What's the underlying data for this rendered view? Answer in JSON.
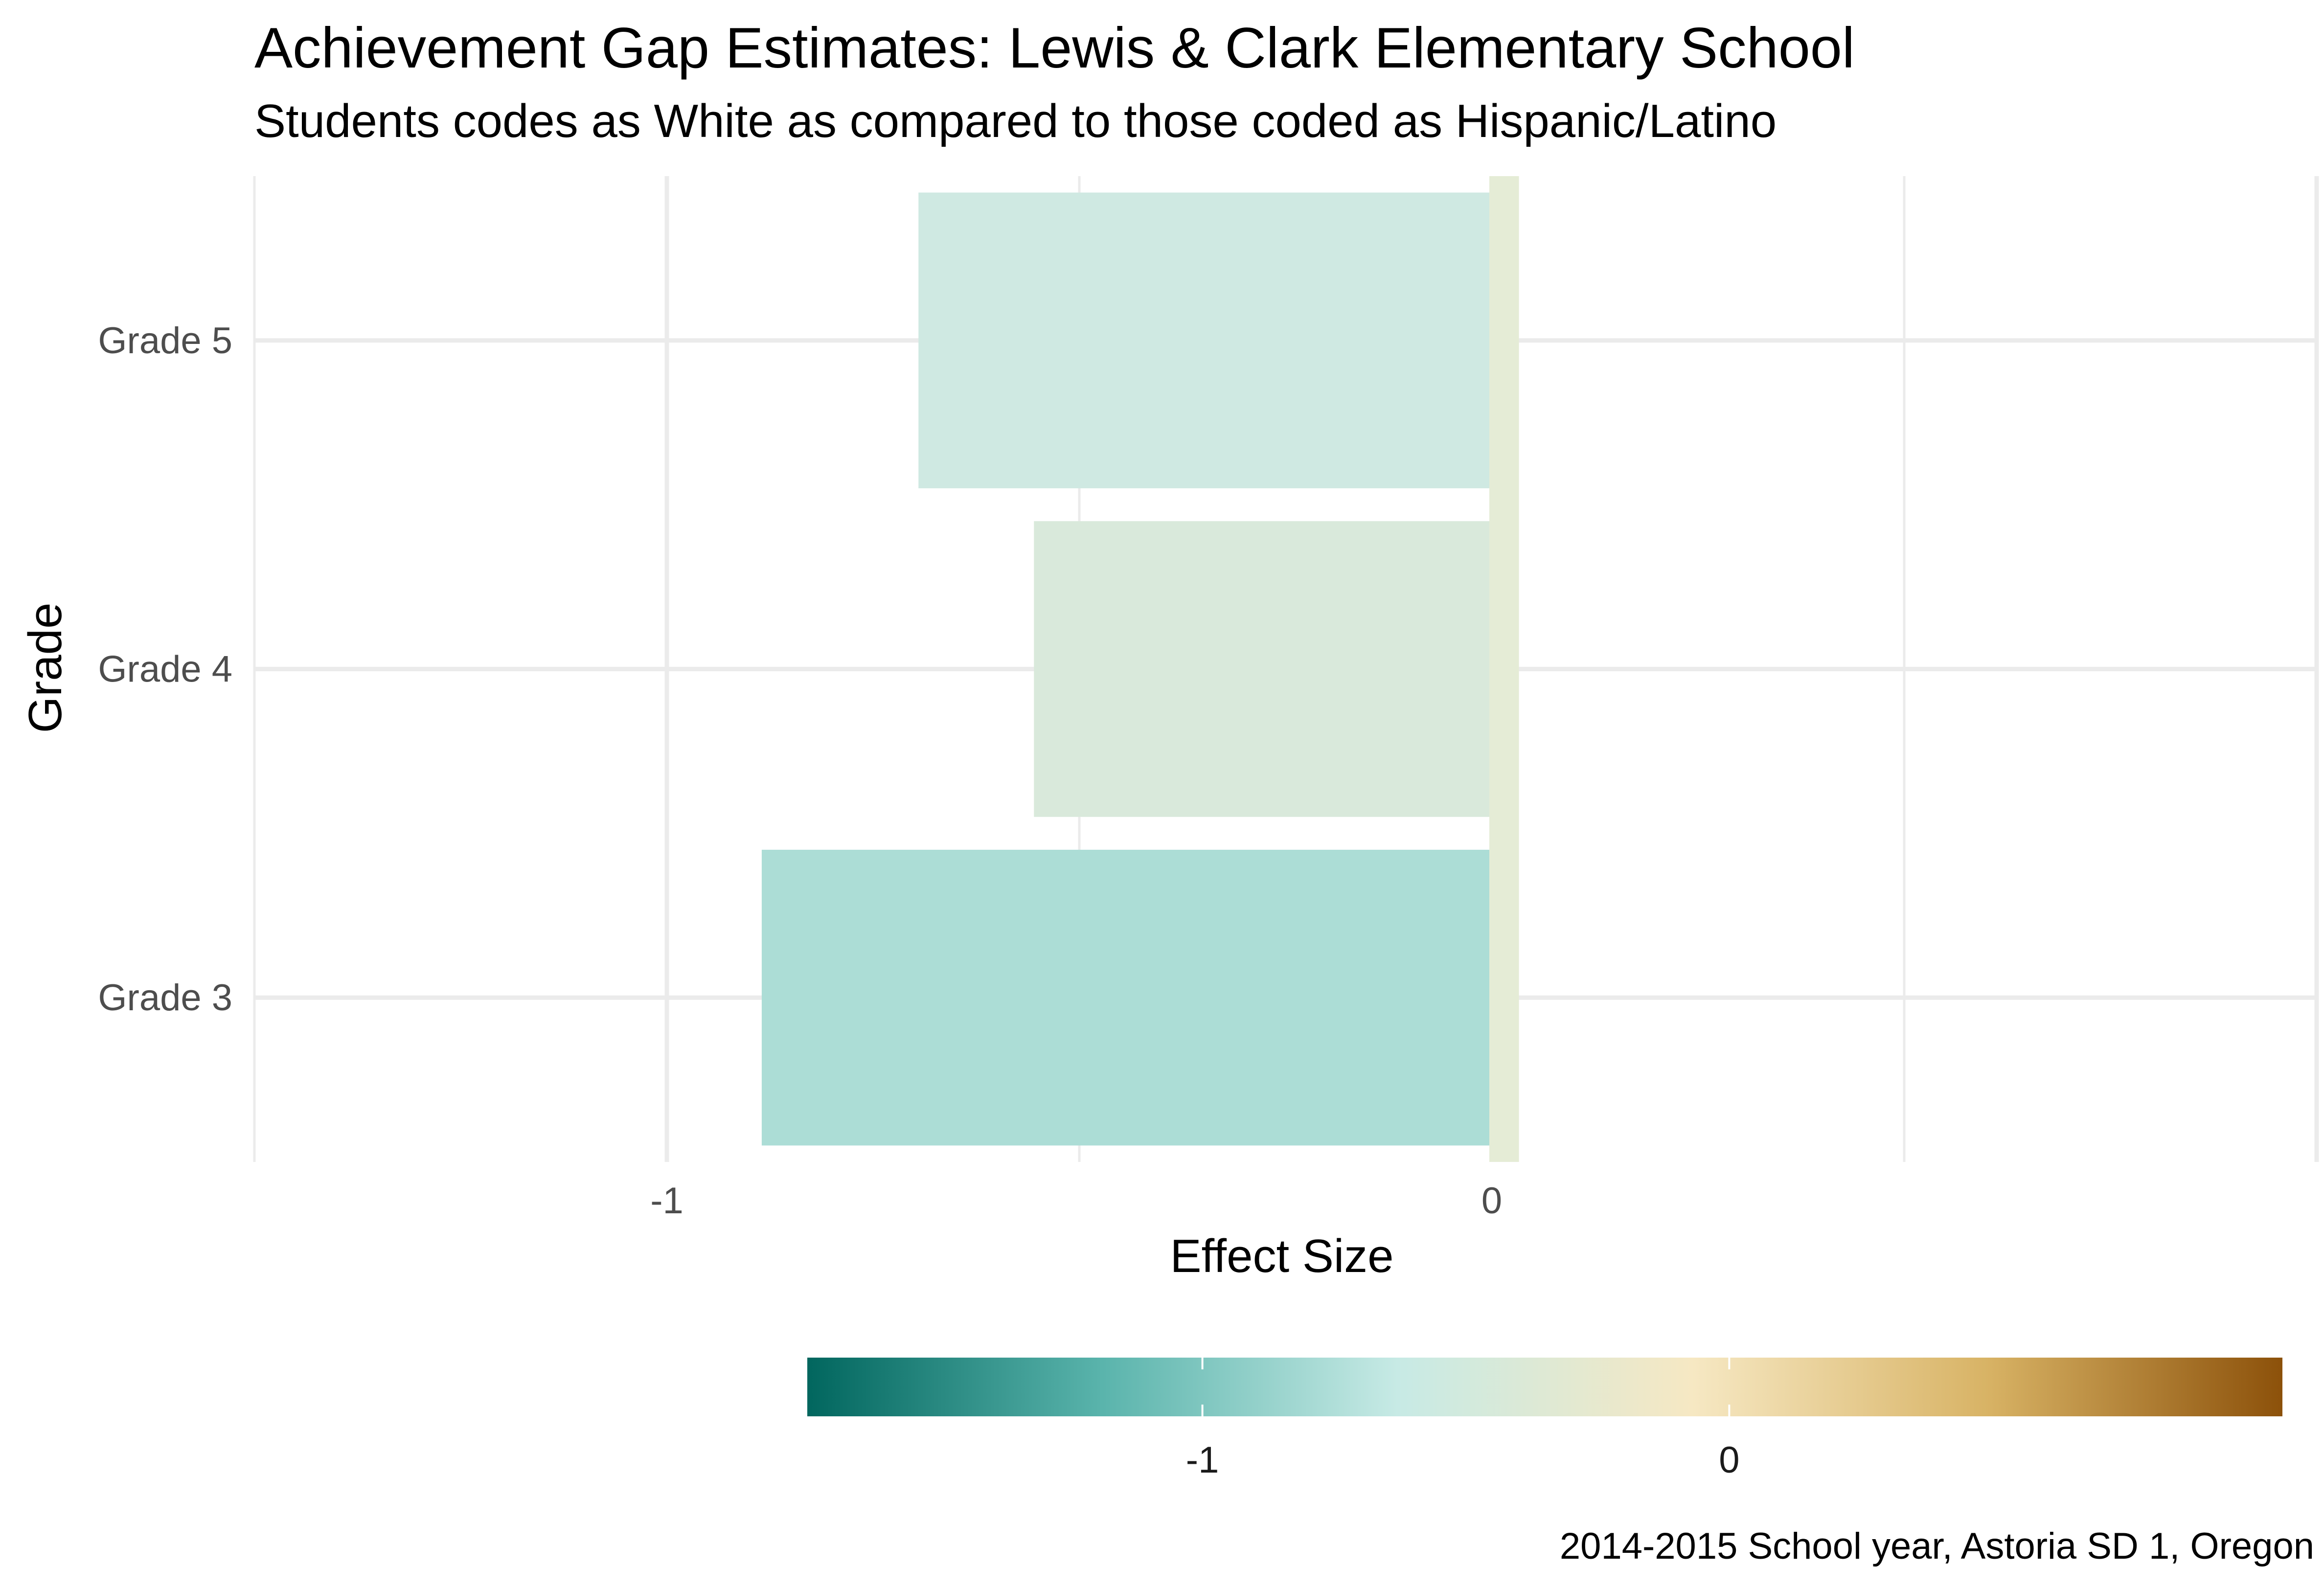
{
  "chart_data": {
    "type": "bar",
    "orientation": "horizontal",
    "title": "Achievement Gap Estimates: Lewis & Clark Elementary School",
    "subtitle": "Students codes as White as compared to those coded as Hispanic/Latino",
    "caption": "2014-2015 School year, Astoria SD 1, Oregon",
    "xlabel": "Effect Size",
    "ylabel": "Grade",
    "categories": [
      "Grade 3",
      "Grade 4",
      "Grade 5"
    ],
    "values": [
      -0.885,
      -0.555,
      -0.695
    ],
    "bar_colors": [
      "#ACDDD6",
      "#D9E9DB",
      "#CFE9E2"
    ],
    "zero_line": {
      "value": 0,
      "width": 0.03,
      "color": "#E5ECD6"
    },
    "xlim": [
      -1.5,
      1
    ],
    "x_ticks": [
      -1,
      0
    ],
    "x_tick_labels": [
      "-1",
      "0"
    ],
    "grid": true,
    "legend": {
      "position": "bottom",
      "type": "colorbar",
      "range": [
        -1.75,
        1.05
      ],
      "ticks": [
        -1,
        0
      ],
      "tick_labels": [
        "-1",
        "0"
      ],
      "colors": [
        "#01665E",
        "#5AB4AC",
        "#C7EAE5",
        "#F6E8C3",
        "#D8B365",
        "#8C510A"
      ]
    }
  }
}
